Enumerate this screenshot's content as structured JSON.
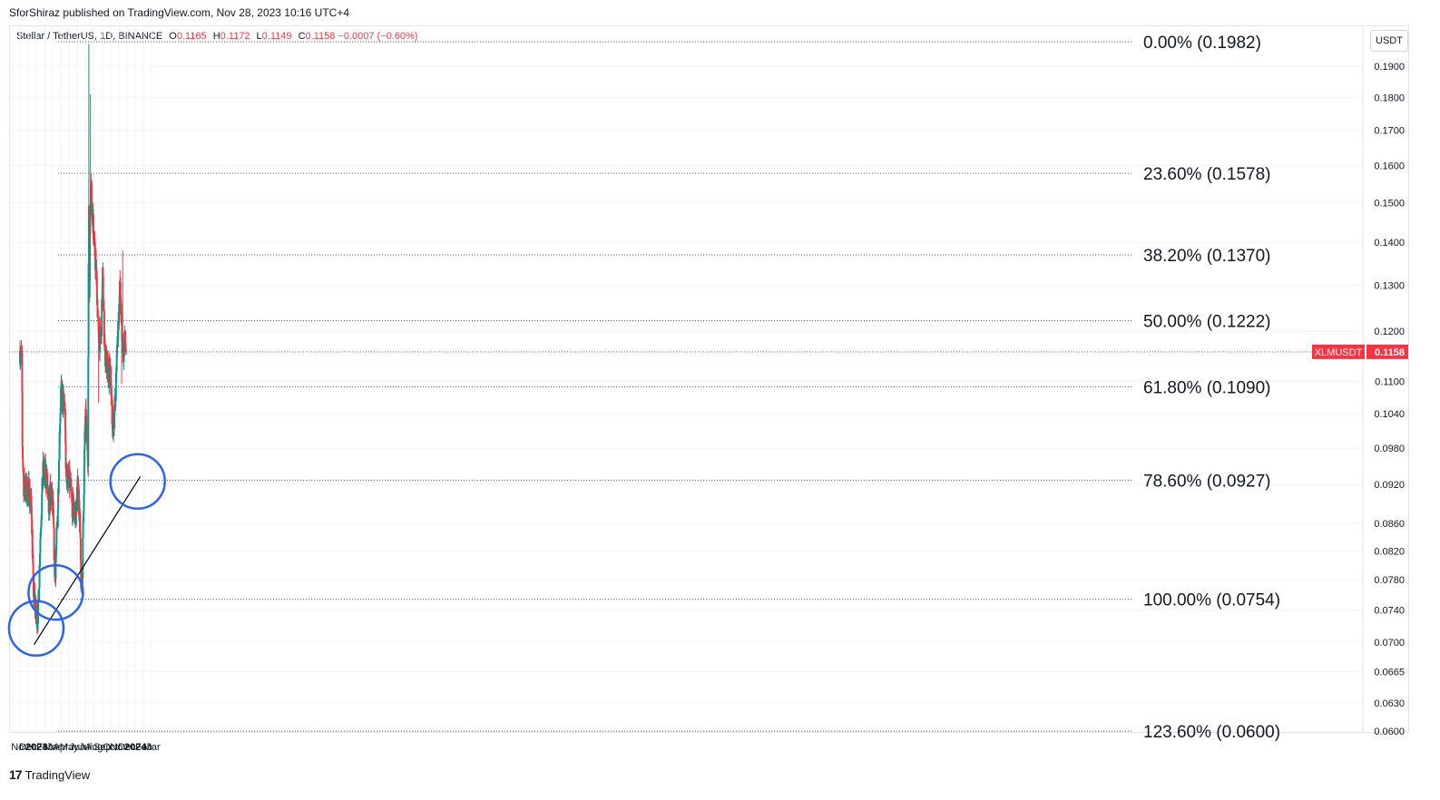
{
  "header": {
    "published": "SforShiraz published on TradingView.com, Nov 28, 2023 10:16 UTC+4",
    "symbol_desc": "Stellar / TetherUS, 1D, BINANCE",
    "o_label": "O",
    "o_value": "0.1165",
    "h_label": "H",
    "h_value": "0.1172",
    "l_label": "L",
    "l_value": "0.1149",
    "c_label": "C",
    "c_value": "0.1158",
    "change": "−0.0007 (−0.60%)",
    "currency": "USDT"
  },
  "footer": {
    "brand": "TradingView"
  },
  "colors": {
    "up": "#089981",
    "down": "#f23645",
    "circle": "#2962ff",
    "fib": "#555555",
    "trend": "#000000"
  },
  "chart_data": {
    "type": "candlestick",
    "symbol": "XLMUSDT",
    "last_price": "0.1158",
    "price_axis": {
      "scale": "log",
      "range": [
        0.0598,
        0.2
      ],
      "ticks": [
        "0.1900",
        "0.1800",
        "0.1700",
        "0.1600",
        "0.1500",
        "0.1400",
        "0.1300",
        "0.1200",
        "0.1100",
        "0.1040",
        "0.0980",
        "0.0920",
        "0.0860",
        "0.0820",
        "0.0780",
        "0.0740",
        "0.0700",
        "0.0665",
        "0.0630",
        "0.0600"
      ]
    },
    "time_axis": {
      "ticks": [
        "Nov",
        "Dec",
        "2023",
        "Feb",
        "Mar",
        "Apr",
        "May",
        "Jun",
        "Jul",
        "Aug",
        "Sep",
        "Oct",
        "Nov",
        "Dec",
        "2024",
        "Feb",
        "Mar"
      ],
      "tick_dates": [
        "2022-11-01",
        "2022-12-01",
        "2023-01-01",
        "2023-02-01",
        "2023-03-01",
        "2023-04-01",
        "2023-05-01",
        "2023-06-01",
        "2023-07-01",
        "2023-08-01",
        "2023-09-01",
        "2023-10-01",
        "2023-11-01",
        "2023-12-01",
        "2024-01-01",
        "2024-02-01",
        "2024-03-01"
      ]
    },
    "price_path": [
      [
        "2022-11-01",
        0.116
      ],
      [
        "2022-11-08",
        0.114
      ],
      [
        "2022-11-10",
        0.098
      ],
      [
        "2022-11-15",
        0.092
      ],
      [
        "2022-11-25",
        0.091
      ],
      [
        "2022-12-05",
        0.091
      ],
      [
        "2022-12-14",
        0.088
      ],
      [
        "2022-12-20",
        0.077
      ],
      [
        "2023-01-01",
        0.073
      ],
      [
        "2023-01-08",
        0.074
      ],
      [
        "2023-01-15",
        0.084
      ],
      [
        "2023-01-25",
        0.094
      ],
      [
        "2023-02-08",
        0.093
      ],
      [
        "2023-02-15",
        0.088
      ],
      [
        "2023-02-22",
        0.091
      ],
      [
        "2023-03-03",
        0.088
      ],
      [
        "2023-03-10",
        0.078
      ],
      [
        "2023-03-20",
        0.087
      ],
      [
        "2023-03-28",
        0.102
      ],
      [
        "2023-04-01",
        0.108
      ],
      [
        "2023-04-15",
        0.105
      ],
      [
        "2023-04-20",
        0.094
      ],
      [
        "2023-05-05",
        0.092
      ],
      [
        "2023-05-12",
        0.089
      ],
      [
        "2023-05-25",
        0.087
      ],
      [
        "2023-06-03",
        0.092
      ],
      [
        "2023-06-10",
        0.086
      ],
      [
        "2023-06-15",
        0.076
      ],
      [
        "2023-06-20",
        0.08
      ],
      [
        "2023-06-30",
        0.104
      ],
      [
        "2023-07-10",
        0.097
      ],
      [
        "2023-07-13",
        0.15
      ],
      [
        "2023-07-15",
        0.128
      ],
      [
        "2023-07-20",
        0.158
      ],
      [
        "2023-07-25",
        0.15
      ],
      [
        "2023-08-01",
        0.14
      ],
      [
        "2023-08-10",
        0.132
      ],
      [
        "2023-08-18",
        0.118
      ],
      [
        "2023-08-28",
        0.119
      ],
      [
        "2023-09-02",
        0.132
      ],
      [
        "2023-09-10",
        0.116
      ],
      [
        "2023-09-20",
        0.112
      ],
      [
        "2023-10-01",
        0.111
      ],
      [
        "2023-10-10",
        0.101
      ],
      [
        "2023-10-18",
        0.106
      ],
      [
        "2023-10-28",
        0.12
      ],
      [
        "2023-11-05",
        0.13
      ],
      [
        "2023-11-12",
        0.119
      ],
      [
        "2023-11-18",
        0.116
      ],
      [
        "2023-11-23",
        0.118
      ],
      [
        "2023-11-28",
        0.1158
      ]
    ],
    "fibonacci": [
      {
        "label": "0.00% (0.1982)",
        "value": 0.1982
      },
      {
        "label": "23.60% (0.1578)",
        "value": 0.1578
      },
      {
        "label": "38.20% (0.1370)",
        "value": 0.137
      },
      {
        "label": "50.00% (0.1222)",
        "value": 0.1222
      },
      {
        "label": "61.80% (0.1090)",
        "value": 0.109
      },
      {
        "label": "78.60% (0.0927)",
        "value": 0.0927
      },
      {
        "label": "100.00% (0.0754)",
        "value": 0.0754
      },
      {
        "label": "123.60% (0.0600)",
        "value": 0.06
      }
    ],
    "trendline": {
      "from": [
        "2022-12-23",
        0.0697
      ],
      "to": [
        "2024-01-19",
        0.0933
      ]
    },
    "circles": [
      {
        "date": "2022-12-31",
        "price": 0.0717
      },
      {
        "date": "2023-03-13",
        "price": 0.0763
      },
      {
        "date": "2024-01-09",
        "price": 0.0925
      }
    ]
  }
}
